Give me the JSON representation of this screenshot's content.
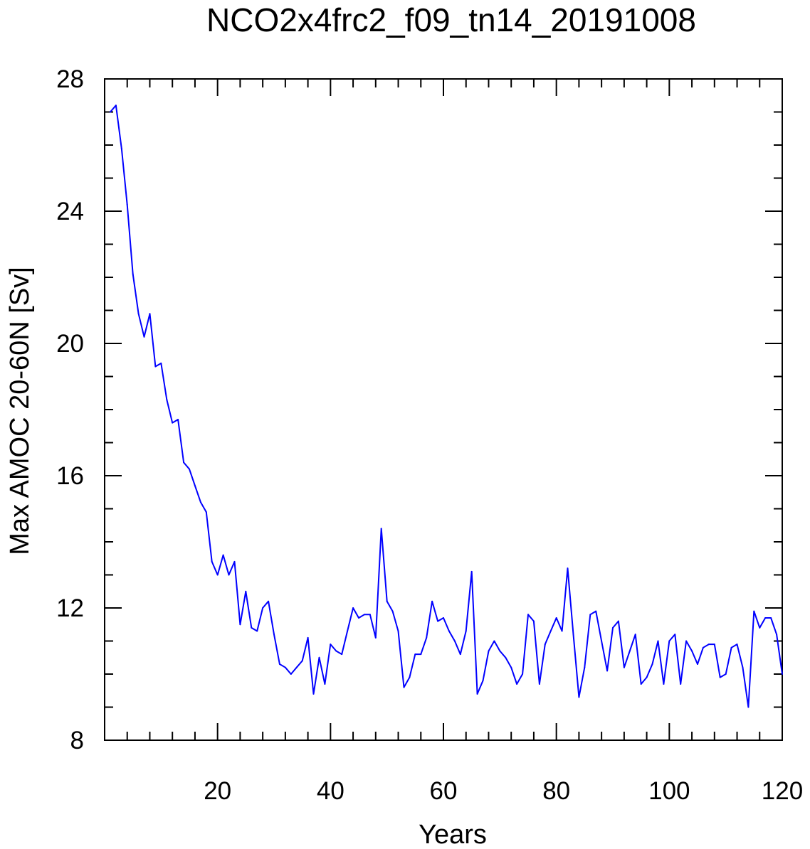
{
  "chart_data": {
    "type": "line",
    "title": "NCO2x4frc2_f09_tn14_20191008",
    "xlabel": "Years",
    "ylabel": "Max AMOC 20-60N [Sv]",
    "xlim": [
      0,
      120
    ],
    "ylim": [
      8,
      28
    ],
    "xticks": [
      20,
      40,
      60,
      80,
      100,
      120
    ],
    "yticks": [
      8,
      12,
      16,
      20,
      24,
      28
    ],
    "grid": false,
    "series": [
      {
        "name": "Max AMOC",
        "color": "#0000ff",
        "x": [
          1,
          2,
          3,
          4,
          5,
          6,
          7,
          8,
          9,
          10,
          11,
          12,
          13,
          14,
          15,
          16,
          17,
          18,
          19,
          20,
          21,
          22,
          23,
          24,
          25,
          26,
          27,
          28,
          29,
          30,
          31,
          32,
          33,
          34,
          35,
          36,
          37,
          38,
          39,
          40,
          41,
          42,
          43,
          44,
          45,
          46,
          47,
          48,
          49,
          50,
          51,
          52,
          53,
          54,
          55,
          56,
          57,
          58,
          59,
          60,
          61,
          62,
          63,
          64,
          65,
          66,
          67,
          68,
          69,
          70,
          71,
          72,
          73,
          74,
          75,
          76,
          77,
          78,
          79,
          80,
          81,
          82,
          83,
          84,
          85,
          86,
          87,
          88,
          89,
          90,
          91,
          92,
          93,
          94,
          95,
          96,
          97,
          98,
          99,
          100,
          101,
          102,
          103,
          104,
          105,
          106,
          107,
          108,
          109,
          110,
          111,
          112,
          113,
          114,
          115,
          116,
          117,
          118,
          119,
          120
        ],
        "values": [
          27.0,
          27.2,
          25.9,
          24.2,
          22.1,
          20.9,
          20.2,
          20.9,
          19.3,
          19.4,
          18.3,
          17.6,
          17.7,
          16.4,
          16.2,
          15.7,
          15.2,
          14.9,
          13.4,
          13.0,
          13.6,
          13.0,
          13.4,
          11.5,
          12.5,
          11.4,
          11.3,
          12.0,
          12.2,
          11.2,
          10.3,
          10.2,
          10.0,
          10.2,
          10.4,
          11.1,
          9.4,
          10.5,
          9.7,
          10.9,
          10.7,
          10.6,
          11.3,
          12.0,
          11.7,
          11.8,
          11.8,
          11.1,
          14.4,
          12.2,
          11.9,
          11.3,
          9.6,
          9.9,
          10.6,
          10.6,
          11.1,
          12.2,
          11.6,
          11.7,
          11.3,
          11.0,
          10.6,
          11.3,
          13.1,
          9.4,
          9.8,
          10.7,
          11.0,
          10.7,
          10.5,
          10.2,
          9.7,
          10.0,
          11.8,
          11.6,
          9.7,
          10.9,
          11.3,
          11.7,
          11.3,
          13.2,
          11.2,
          9.3,
          10.2,
          11.8,
          11.9,
          11.0,
          10.1,
          11.4,
          11.6,
          10.2,
          10.7,
          11.2,
          9.7,
          9.9,
          10.3,
          11.0,
          9.7,
          11.0,
          11.2,
          9.7,
          11.0,
          10.7,
          10.3,
          10.8,
          10.9,
          10.9,
          9.9,
          10.0,
          10.8,
          10.9,
          10.2,
          9.0,
          11.9,
          11.4,
          11.7,
          11.7,
          11.2,
          10.0
        ]
      }
    ]
  }
}
